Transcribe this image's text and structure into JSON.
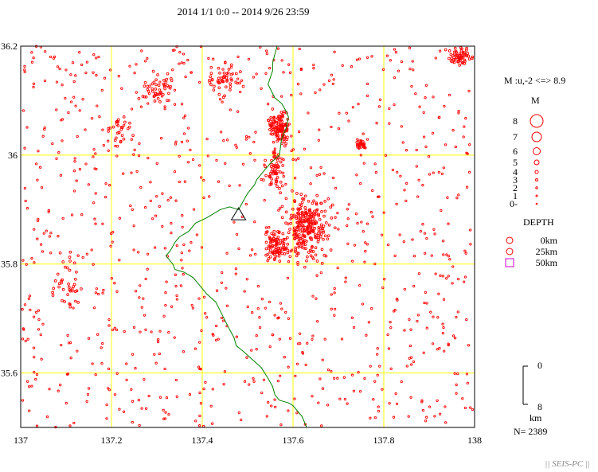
{
  "title": "2014 1/1 0:0 -- 2014 9/26 23:59",
  "map": {
    "lon_range": [
      137,
      138
    ],
    "lat_range": [
      35.5,
      36.2
    ],
    "lon_ticks": [
      "137",
      "137.2",
      "137.4",
      "137.6",
      "137.8",
      "138"
    ],
    "lat_ticks": [
      "36.2",
      "36",
      "35.8",
      "35.6"
    ],
    "grid_color": "#ffff00",
    "event_color": "#ff0000",
    "boundary_color": "#008000",
    "station": {
      "lon": 137.48,
      "lat": 35.89,
      "symbol": "triangle"
    },
    "boundary": [
      [
        137.565,
        36.2
      ],
      [
        137.555,
        36.17
      ],
      [
        137.555,
        36.155
      ],
      [
        137.545,
        36.13
      ],
      [
        137.56,
        36.105
      ],
      [
        137.575,
        36.095
      ],
      [
        137.585,
        36.08
      ],
      [
        137.59,
        36.07
      ],
      [
        137.585,
        36.05
      ],
      [
        137.575,
        36.03
      ],
      [
        137.57,
        36.0
      ],
      [
        137.55,
        35.985
      ],
      [
        137.535,
        35.97
      ],
      [
        137.52,
        35.955
      ],
      [
        137.515,
        35.945
      ],
      [
        137.5,
        35.93
      ],
      [
        137.49,
        35.915
      ],
      [
        137.48,
        35.9
      ],
      [
        137.46,
        35.905
      ],
      [
        137.44,
        35.9
      ],
      [
        137.41,
        35.885
      ],
      [
        137.385,
        35.875
      ],
      [
        137.37,
        35.86
      ],
      [
        137.35,
        35.85
      ],
      [
        137.34,
        35.84
      ],
      [
        137.33,
        35.825
      ],
      [
        137.32,
        35.815
      ],
      [
        137.335,
        35.8
      ],
      [
        137.34,
        35.79
      ],
      [
        137.36,
        35.785
      ],
      [
        137.38,
        35.775
      ],
      [
        137.395,
        35.76
      ],
      [
        137.41,
        35.745
      ],
      [
        137.43,
        35.73
      ],
      [
        137.445,
        35.705
      ],
      [
        137.46,
        35.68
      ],
      [
        137.47,
        35.665
      ],
      [
        137.475,
        35.65
      ],
      [
        137.49,
        35.64
      ],
      [
        137.51,
        35.625
      ],
      [
        137.53,
        35.61
      ],
      [
        137.545,
        35.59
      ],
      [
        137.555,
        35.575
      ],
      [
        137.56,
        35.56
      ],
      [
        137.57,
        35.55
      ],
      [
        137.59,
        35.545
      ],
      [
        137.6,
        35.54
      ],
      [
        137.61,
        35.53
      ],
      [
        137.62,
        35.52
      ],
      [
        137.63,
        35.5
      ]
    ],
    "event_count": 2389
  },
  "legend": {
    "magnitude_range": "M :u,-2 <=> 8.9",
    "magnitude_title": "M",
    "magnitude_labels": [
      "8",
      "7",
      "6",
      "5",
      "4",
      "3",
      "2",
      "1",
      "0-"
    ],
    "depth_title": "DEPTH",
    "depth_labels": [
      "0km",
      "25km",
      "50km"
    ],
    "depth_colors": [
      "#ff0000",
      "#ff0000",
      "#cc00cc"
    ],
    "depth_scale_top": "0",
    "depth_scale_bottom": "8",
    "depth_scale_unit": "km",
    "count_label": "N= 2389"
  },
  "footer": "|| SEIS-PC ||"
}
